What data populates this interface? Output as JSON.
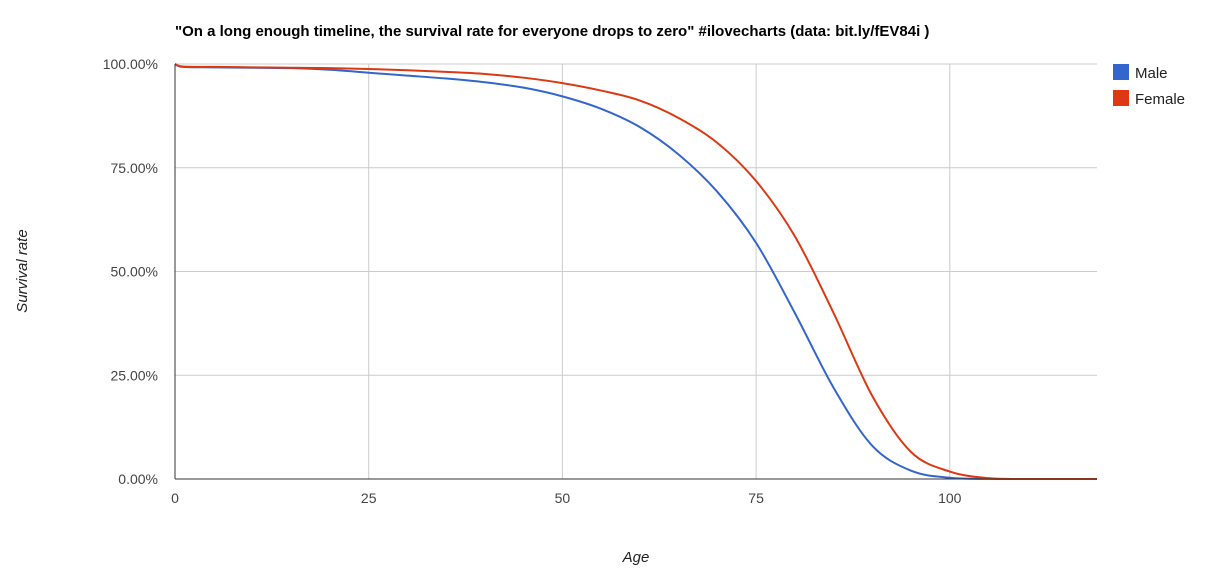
{
  "chart_data": {
    "type": "line",
    "title": "\"On a long enough timeline, the survival rate for everyone drops to zero\" #ilovecharts (data: bit.ly/fEV84i )",
    "xlabel": "Age",
    "ylabel": "Survival rate",
    "xlim": [
      0,
      119
    ],
    "ylim": [
      0,
      100
    ],
    "x_ticks": [
      0,
      25,
      50,
      75,
      100
    ],
    "x_tick_labels": [
      "0",
      "25",
      "50",
      "75",
      "100"
    ],
    "y_ticks": [
      0,
      25,
      50,
      75,
      100
    ],
    "y_tick_labels": [
      "0.00%",
      "25.00%",
      "50.00%",
      "75.00%",
      "100.00%"
    ],
    "grid": true,
    "legend_position": "right",
    "x": [
      0,
      1,
      5,
      10,
      15,
      20,
      25,
      30,
      35,
      40,
      45,
      50,
      55,
      60,
      65,
      70,
      75,
      80,
      85,
      90,
      95,
      100,
      105,
      110,
      119
    ],
    "series": [
      {
        "name": "Male",
        "color": "#3366cc",
        "values": [
          100,
          99.3,
          99.2,
          99.1,
          99.0,
          98.6,
          97.9,
          97.2,
          96.5,
          95.6,
          94.3,
          92.2,
          89.2,
          84.8,
          78.2,
          69.2,
          56.9,
          40.0,
          22.0,
          8.0,
          2.0,
          0.3,
          0.02,
          0,
          0
        ]
      },
      {
        "name": "Female",
        "color": "#dc3912",
        "values": [
          100,
          99.4,
          99.3,
          99.2,
          99.1,
          99.0,
          98.8,
          98.5,
          98.1,
          97.6,
          96.7,
          95.4,
          93.6,
          91.2,
          87.0,
          81.0,
          71.8,
          58.5,
          40.0,
          20.0,
          6.5,
          1.8,
          0.2,
          0,
          0
        ]
      }
    ]
  }
}
